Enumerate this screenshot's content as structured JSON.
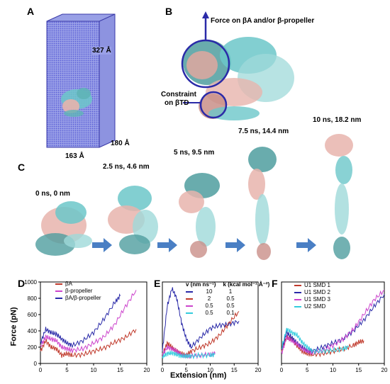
{
  "panels": {
    "A": {
      "letter": "A",
      "dim_z": "327 Å",
      "dim_x": "163 Å",
      "dim_y": "180 Å"
    },
    "B": {
      "letter": "B",
      "force_label": "Force on βA and/or β-propeller",
      "constraint_label_1": "Constraint",
      "constraint_label_2": "on βTD"
    },
    "C": {
      "letter": "C",
      "frames": [
        "0 ns, 0 nm",
        "2.5 ns, 4.6 nm",
        "5 ns, 9.5 nm",
        "7.5 ns, 14.4 nm",
        "10 ns, 18.2 nm"
      ]
    },
    "D": {
      "letter": "D"
    },
    "E": {
      "letter": "E",
      "legend_header_v": "v (nm ns⁻¹)",
      "legend_header_k": "k (kcal mol⁻¹ Å⁻²)",
      "legend_rows": [
        {
          "v": "10",
          "k": "1",
          "color": "#2a2aa8"
        },
        {
          "v": "2",
          "k": "0.5",
          "color": "#c0392b"
        },
        {
          "v": "0.5",
          "k": "0.5",
          "color": "#cc44cc"
        },
        {
          "v": "0.5",
          "k": "0.1",
          "color": "#33ccdd"
        }
      ]
    },
    "F": {
      "letter": "F"
    }
  },
  "axes": {
    "ylabel": "Force (pN)",
    "xlabel": "Extension (nm)"
  },
  "chart_data": [
    {
      "type": "line",
      "panel": "D",
      "xlim": [
        0,
        20
      ],
      "ylim": [
        0,
        1000
      ],
      "xticks": [
        0,
        5,
        10,
        15,
        20
      ],
      "yticks": [
        0,
        200,
        400,
        600,
        800,
        1000
      ],
      "series": [
        {
          "name": "βA",
          "color": "#c0392b",
          "x": [
            0,
            1,
            2,
            3,
            4,
            5,
            6,
            8,
            10,
            12,
            14,
            16,
            18
          ],
          "y": [
            150,
            280,
            200,
            180,
            100,
            120,
            100,
            110,
            150,
            190,
            260,
            320,
            420
          ]
        },
        {
          "name": "β-propeller",
          "color": "#cc44cc",
          "x": [
            0,
            1,
            2,
            3,
            4,
            5,
            6,
            8,
            10,
            12,
            14,
            16,
            18
          ],
          "y": [
            200,
            330,
            300,
            280,
            200,
            180,
            160,
            180,
            250,
            330,
            480,
            700,
            900
          ]
        },
        {
          "name": "βA/β-propeller",
          "color": "#2a2aa8",
          "x": [
            0,
            1,
            2,
            3,
            4,
            5,
            6,
            8,
            10,
            12,
            14,
            15
          ],
          "y": [
            250,
            420,
            380,
            360,
            300,
            250,
            220,
            280,
            380,
            550,
            750,
            830
          ]
        }
      ]
    },
    {
      "type": "line",
      "panel": "E",
      "xlim": [
        0,
        20
      ],
      "ylim": [
        0,
        1000
      ],
      "xticks": [
        0,
        5,
        10,
        15,
        20
      ],
      "series": [
        {
          "name": "10 / 1",
          "color": "#2a2aa8",
          "x": [
            0,
            1,
            2,
            3,
            4,
            5,
            6,
            8,
            10,
            12,
            14,
            16
          ],
          "y": [
            150,
            700,
            920,
            800,
            500,
            300,
            200,
            320,
            430,
            470,
            480,
            520
          ]
        },
        {
          "name": "2 / 0.5",
          "color": "#c0392b",
          "x": [
            0,
            1,
            2,
            3,
            4,
            5,
            6,
            8,
            10,
            12,
            14,
            16
          ],
          "y": [
            100,
            250,
            200,
            150,
            120,
            100,
            150,
            200,
            250,
            350,
            500,
            640
          ]
        },
        {
          "name": "0.5 / 0.5",
          "color": "#cc44cc",
          "x": [
            0,
            1,
            2,
            3,
            4,
            5,
            6,
            8,
            10,
            11
          ],
          "y": [
            100,
            200,
            180,
            150,
            100,
            90,
            90,
            100,
            110,
            120
          ]
        },
        {
          "name": "0.5 / 0.1",
          "color": "#33ccdd",
          "x": [
            0,
            1,
            2,
            3,
            4,
            5,
            6,
            8,
            10,
            11
          ],
          "y": [
            80,
            120,
            130,
            110,
            90,
            90,
            90,
            100,
            100,
            110
          ]
        }
      ]
    },
    {
      "type": "line",
      "panel": "F",
      "xlim": [
        0,
        20
      ],
      "ylim": [
        0,
        1000
      ],
      "xticks": [
        0,
        5,
        10,
        15,
        20
      ],
      "series": [
        {
          "name": "U1 SMD 1",
          "color": "#c0392b",
          "x": [
            0,
            1,
            2,
            3,
            4,
            5,
            6,
            8,
            10,
            12,
            14,
            15,
            16
          ],
          "y": [
            150,
            320,
            300,
            220,
            150,
            120,
            110,
            120,
            150,
            180,
            220,
            260,
            280
          ]
        },
        {
          "name": "U1 SMD 2",
          "color": "#2a2aa8",
          "x": [
            0,
            1,
            2,
            3,
            4,
            5,
            6,
            8,
            10,
            12,
            14,
            16,
            18,
            20
          ],
          "y": [
            150,
            380,
            320,
            250,
            200,
            160,
            150,
            200,
            250,
            300,
            400,
            530,
            700,
            850
          ]
        },
        {
          "name": "U1 SMD 3",
          "color": "#cc44cc",
          "x": [
            0,
            1,
            2,
            3,
            4,
            5,
            6,
            8,
            10,
            12,
            14,
            16,
            18,
            20
          ],
          "y": [
            120,
            320,
            280,
            240,
            180,
            150,
            130,
            160,
            220,
            300,
            420,
            600,
            780,
            900
          ]
        },
        {
          "name": "U2 SMD",
          "color": "#33ccdd",
          "x": [
            0,
            1,
            2,
            3,
            4,
            5,
            6,
            8,
            10,
            12,
            13
          ],
          "y": [
            180,
            420,
            380,
            350,
            260,
            200,
            150,
            150,
            160,
            180,
            200
          ]
        }
      ]
    }
  ]
}
